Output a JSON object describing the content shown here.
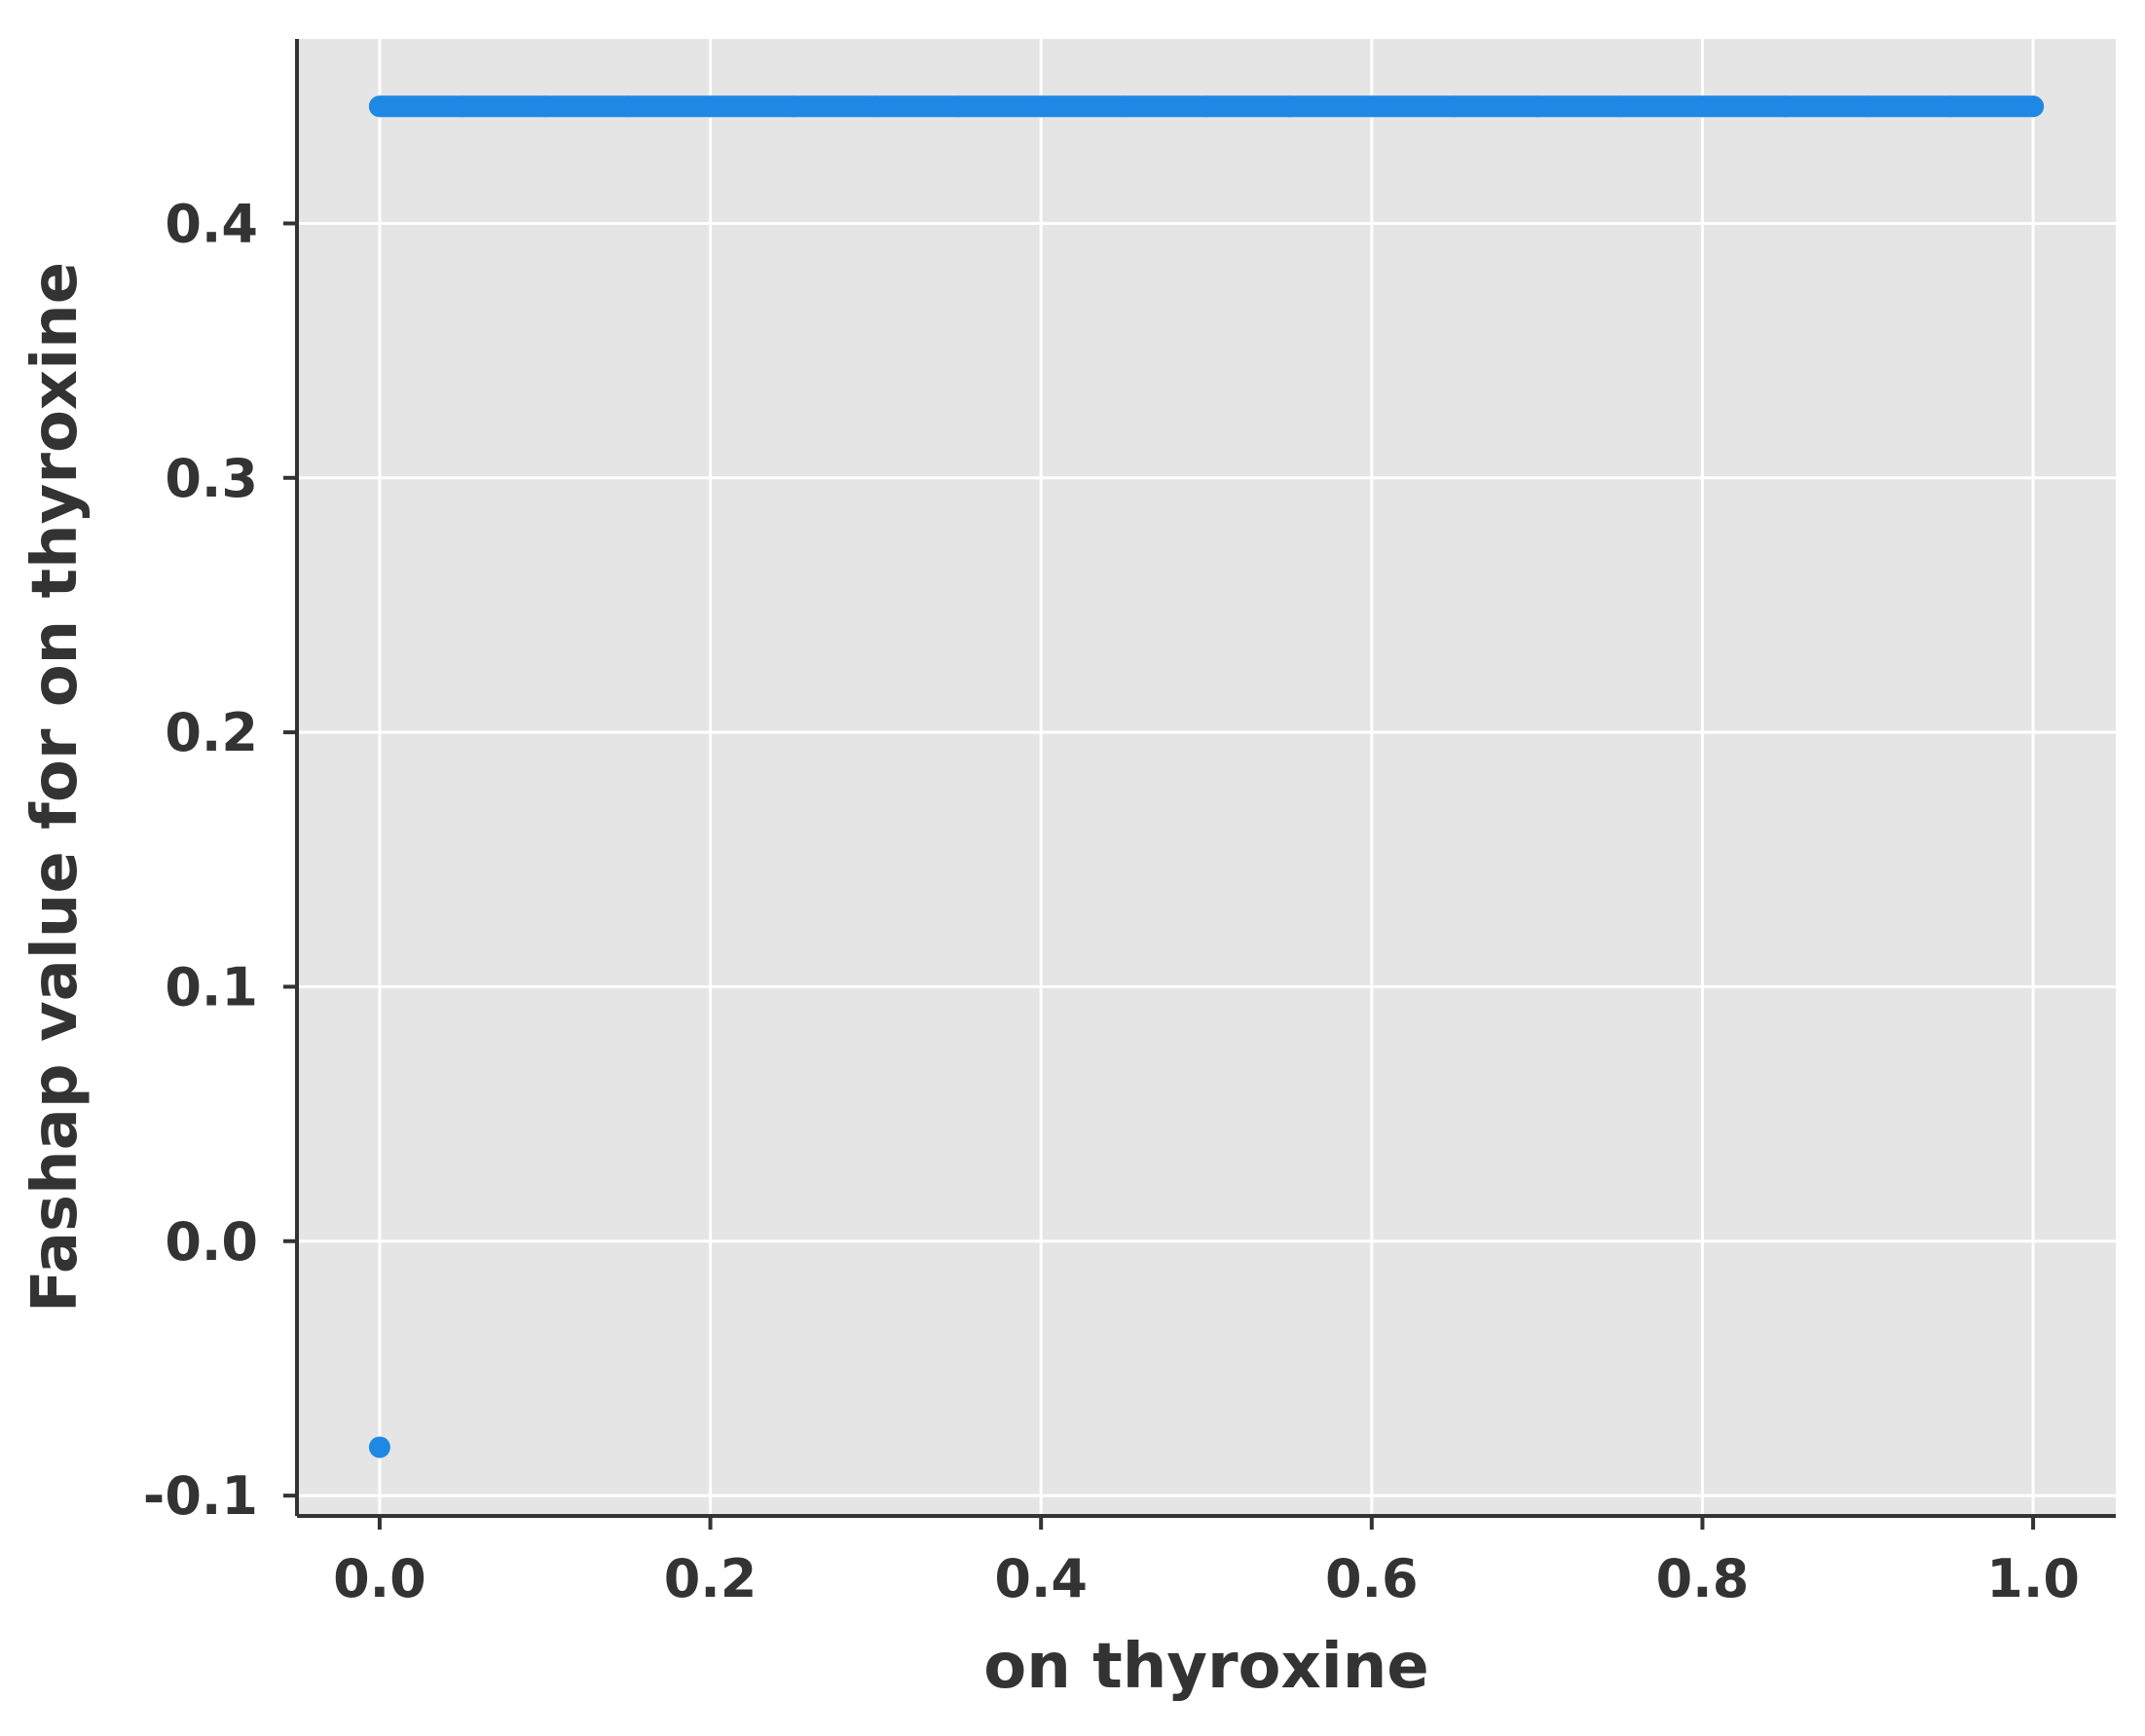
{
  "chart_data": {
    "type": "scatter",
    "title": "",
    "xlabel": "on thyroxine",
    "ylabel": "Fashap value for on thyroxine",
    "xlim": [
      -0.05,
      1.05
    ],
    "ylim": [
      -0.108,
      0.4725
    ],
    "xticks": [
      0.0,
      0.2,
      0.4,
      0.6,
      0.8,
      1.0
    ],
    "xtick_labels": [
      "0.0",
      "0.2",
      "0.4",
      "0.6",
      "0.8",
      "1.0"
    ],
    "yticks": [
      -0.1,
      0.0,
      0.1,
      0.2,
      0.3,
      0.4
    ],
    "ytick_labels": [
      "-0.1",
      "0.0",
      "0.1",
      "0.2",
      "0.3",
      "0.4"
    ],
    "grid": true,
    "series": [
      {
        "points_x": [
          0.0,
          0.05,
          0.1,
          0.15,
          0.2,
          0.25,
          0.3,
          0.35,
          0.4,
          0.45,
          0.5,
          0.55,
          0.6,
          0.65,
          0.7,
          0.75,
          0.8,
          0.85,
          0.9,
          0.95,
          1.0,
          0.0
        ],
        "points_y": [
          0.446,
          0.446,
          0.446,
          0.446,
          0.446,
          0.446,
          0.446,
          0.446,
          0.446,
          0.446,
          0.446,
          0.446,
          0.446,
          0.446,
          0.446,
          0.446,
          0.446,
          0.446,
          0.446,
          0.446,
          0.446,
          -0.081
        ]
      }
    ],
    "colors": {
      "point": "#1e88e5",
      "plot_background": "#e5e5e5",
      "grid": "#ffffff",
      "axis": "#333333",
      "text": "#333333"
    }
  }
}
